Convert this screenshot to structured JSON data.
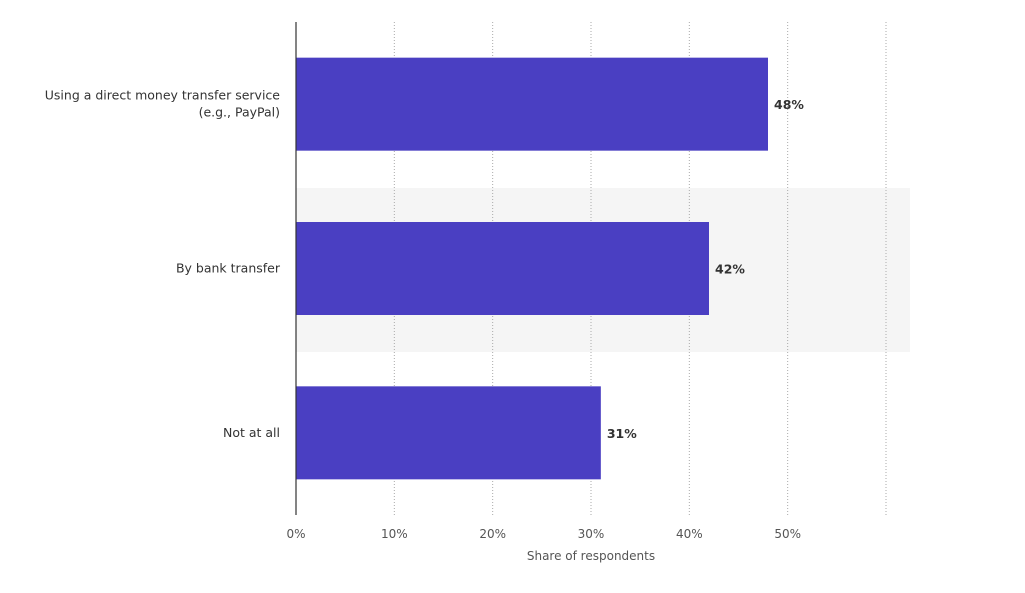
{
  "chart_data": {
    "type": "bar",
    "orientation": "horizontal",
    "categories": [
      "Using a direct money transfer service\n(e.g., PayPal)",
      "By bank transfer",
      "Not at all"
    ],
    "values": [
      48,
      42,
      31
    ],
    "value_labels": [
      "48%",
      "42%",
      "31%"
    ],
    "color": "#4a3fc2",
    "xlabel": "Share of respondents",
    "xlim": [
      0,
      60
    ],
    "xticks": [
      {
        "value": 0,
        "label": "0%"
      },
      {
        "value": 10,
        "label": "10%"
      },
      {
        "value": 20,
        "label": "20%"
      },
      {
        "value": 30,
        "label": "30%"
      },
      {
        "value": 40,
        "label": "40%"
      },
      {
        "value": 50,
        "label": "50%"
      }
    ],
    "grid": true
  }
}
